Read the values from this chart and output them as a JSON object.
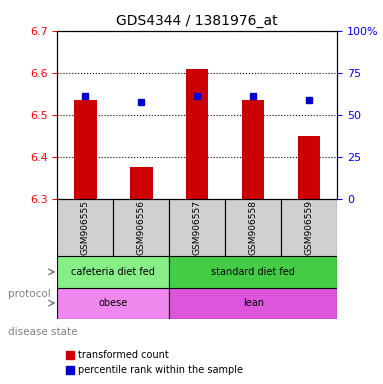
{
  "title": "GDS4344 / 1381976_at",
  "samples": [
    "GSM906555",
    "GSM906556",
    "GSM906557",
    "GSM906558",
    "GSM906559"
  ],
  "bar_values": [
    6.535,
    6.375,
    6.61,
    6.535,
    6.45
  ],
  "percentile_values": [
    6.545,
    6.53,
    6.545,
    6.545,
    6.535
  ],
  "ymin": 6.3,
  "ymax": 6.7,
  "yticks": [
    6.3,
    6.4,
    6.5,
    6.6,
    6.7
  ],
  "y2ticks": [
    0,
    25,
    50,
    75,
    100
  ],
  "y2labels": [
    "0",
    "25",
    "50",
    "75",
    "100%"
  ],
  "bar_color": "#cc0000",
  "percentile_color": "#0000cc",
  "protocol_groups": [
    {
      "label": "cafeteria diet fed",
      "start": 0,
      "end": 2,
      "color": "#88ee88"
    },
    {
      "label": "standard diet fed",
      "start": 2,
      "end": 5,
      "color": "#44cc44"
    }
  ],
  "disease_groups": [
    {
      "label": "obese",
      "start": 0,
      "end": 2,
      "color": "#ee88ee"
    },
    {
      "label": "lean",
      "start": 2,
      "end": 5,
      "color": "#dd55dd"
    }
  ],
  "protocol_label": "protocol",
  "disease_label": "disease state",
  "legend_red": "transformed count",
  "legend_blue": "percentile rank within the sample",
  "bar_width": 0.4,
  "xlim_left": -0.5,
  "xlim_right": 4.5
}
